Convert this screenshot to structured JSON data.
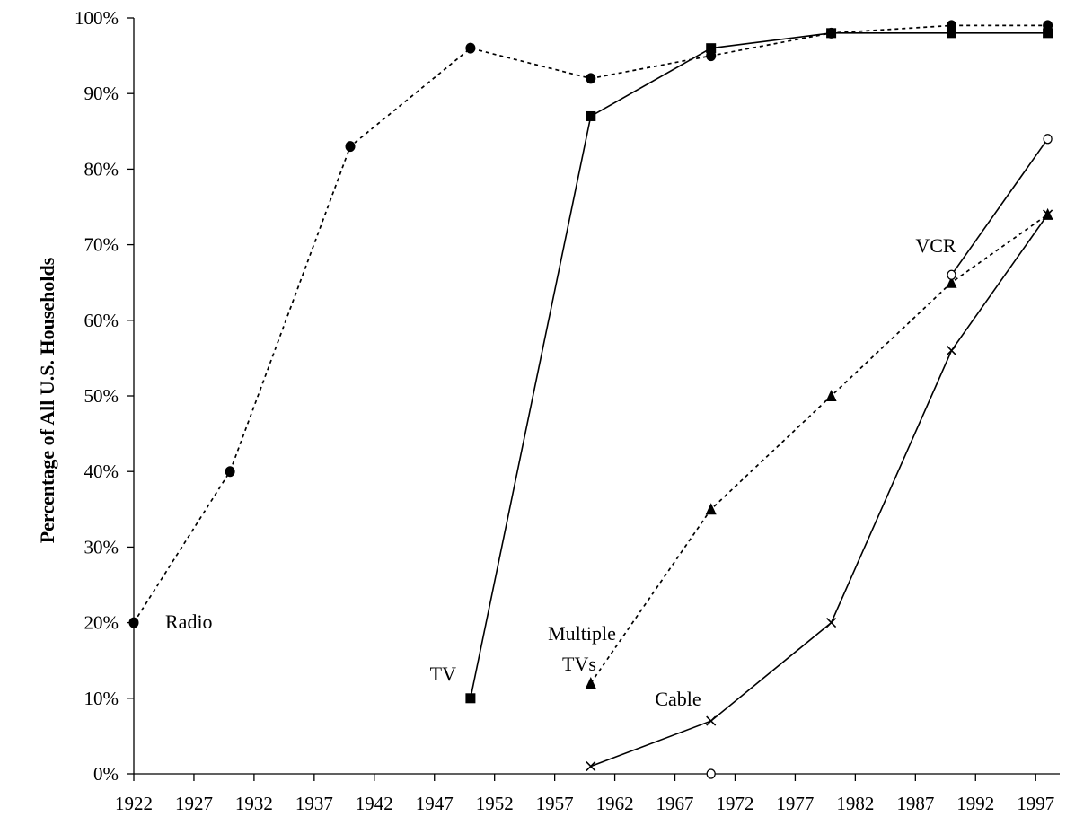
{
  "chart_data": {
    "type": "line",
    "title": "",
    "xlabel": "",
    "ylabel": "Percentage of All U.S. Households",
    "xlim": [
      1922,
      1999
    ],
    "ylim": [
      0,
      100
    ],
    "x_ticks": [
      "1922",
      "1927",
      "1932",
      "1937",
      "1942",
      "1947",
      "1952",
      "1957",
      "1962",
      "1967",
      "1972",
      "1977",
      "1982",
      "1987",
      "1992",
      "1997"
    ],
    "y_ticks": [
      "0%",
      "10%",
      "20%",
      "30%",
      "40%",
      "50%",
      "60%",
      "70%",
      "80%",
      "90%",
      "100%"
    ],
    "grid": false,
    "legend": "none",
    "series": [
      {
        "name": "Radio",
        "marker": "circle",
        "line": "dotted",
        "points": [
          [
            1922,
            20
          ],
          [
            1930,
            40
          ],
          [
            1940,
            83
          ],
          [
            1950,
            96
          ],
          [
            1960,
            92
          ],
          [
            1970,
            95
          ],
          [
            1980,
            98
          ],
          [
            1990,
            99
          ],
          [
            1998,
            99
          ]
        ]
      },
      {
        "name": "TV",
        "marker": "square",
        "line": "solid",
        "points": [
          [
            1950,
            10
          ],
          [
            1960,
            87
          ],
          [
            1970,
            96
          ],
          [
            1980,
            98
          ],
          [
            1990,
            98
          ],
          [
            1998,
            98
          ]
        ]
      },
      {
        "name": "Multiple TVs",
        "marker": "triangle",
        "line": "dotted",
        "points": [
          [
            1960,
            12
          ],
          [
            1970,
            35
          ],
          [
            1980,
            50
          ],
          [
            1990,
            65
          ],
          [
            1998,
            74
          ]
        ]
      },
      {
        "name": "Cable",
        "marker": "x",
        "line": "solid",
        "points": [
          [
            1960,
            1
          ],
          [
            1970,
            7
          ],
          [
            1980,
            20
          ],
          [
            1990,
            56
          ],
          [
            1998,
            74
          ]
        ]
      },
      {
        "name": "VCR",
        "marker": "open-circle",
        "line": "solid",
        "points": [
          [
            1990,
            66
          ],
          [
            1998,
            84
          ]
        ],
        "isolated_points": [
          [
            1970,
            0
          ]
        ]
      }
    ],
    "annotations": [
      {
        "series": "Radio",
        "lines": [
          "Radio"
        ]
      },
      {
        "series": "TV",
        "lines": [
          "TV"
        ]
      },
      {
        "series": "Multiple TVs",
        "lines": [
          "Multiple",
          "TVs"
        ]
      },
      {
        "series": "Cable",
        "lines": [
          "Cable"
        ]
      },
      {
        "series": "VCR",
        "lines": [
          "VCR"
        ]
      }
    ]
  }
}
